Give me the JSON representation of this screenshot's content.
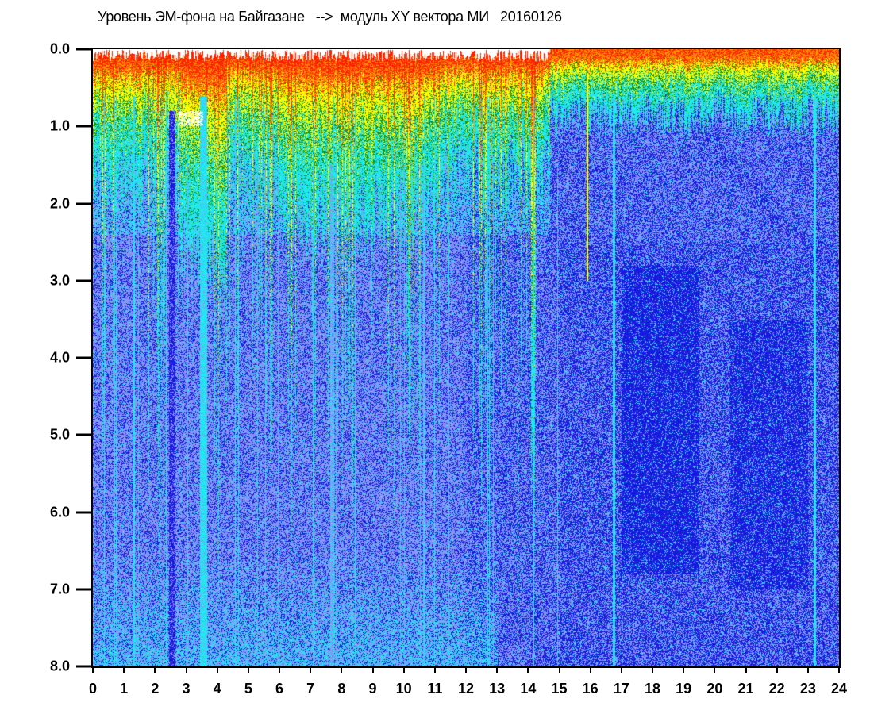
{
  "chart_data": {
    "type": "heatmap",
    "title": "Уровень ЭМ-фона на Байгазане   -->  модуль XY вектора МИ   20160126",
    "xlabel": "",
    "ylabel": "",
    "xlim": [
      0,
      24
    ],
    "ylim": [
      8.0,
      0.0
    ],
    "y_inverted": true,
    "xticks": [
      "0",
      "1",
      "2",
      "3",
      "4",
      "5",
      "6",
      "7",
      "8",
      "9",
      "10",
      "11",
      "12",
      "13",
      "14",
      "15",
      "16",
      "17",
      "18",
      "19",
      "20",
      "21",
      "22",
      "23",
      "24"
    ],
    "yticks": [
      "0.0",
      "1.0",
      "2.0",
      "3.0",
      "4.0",
      "5.0",
      "6.0",
      "7.0",
      "8.0"
    ],
    "colorscale": [
      "#ffffff",
      "#ff2000",
      "#ff9000",
      "#ffff00",
      "#109010",
      "#20e8f0",
      "#8c96f0",
      "#1818e0"
    ],
    "grid": false,
    "legend": "none"
  }
}
